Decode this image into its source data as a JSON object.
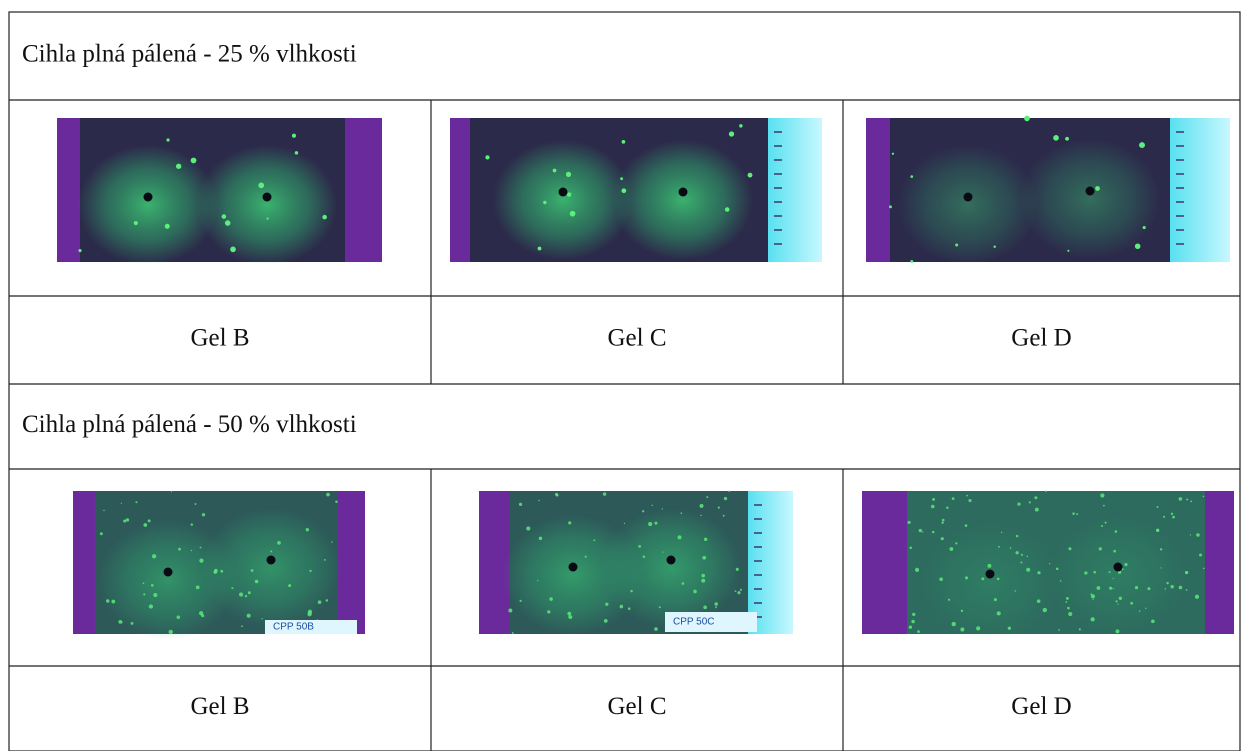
{
  "sections": [
    {
      "title": "Cihla plná pálená - 25 % vlhkosti",
      "photos": [
        {
          "caption": "Gel B"
        },
        {
          "caption": "Gel C"
        },
        {
          "caption": "Gel D"
        }
      ]
    },
    {
      "title": "Cihla plná pálená - 50 % vlhkosti",
      "photos": [
        {
          "caption": "Gel B",
          "tag": "CPP 50B"
        },
        {
          "caption": "Gel C",
          "tag": "CPP 50C"
        },
        {
          "caption": "Gel D"
        }
      ]
    }
  ]
}
